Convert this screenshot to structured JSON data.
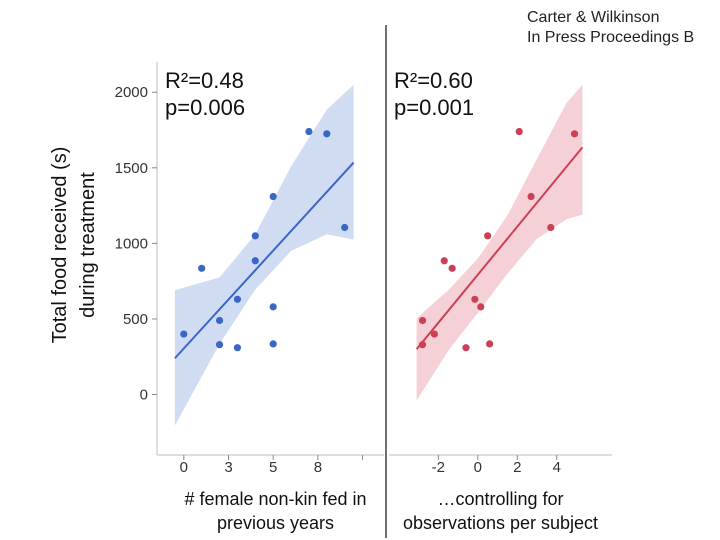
{
  "credit": {
    "line1": "Carter & Wilkinson",
    "line2": "In Press Proceedings B"
  },
  "chart_data": [
    {
      "type": "scatter",
      "title": "",
      "ylabel": "Total food received (s)",
      "ylabel_line2": "during treatment",
      "xlabel": "# female non-kin fed in",
      "xlabel_line2": "previous years",
      "ylim": [
        -400,
        2200
      ],
      "xlim": [
        -1.5,
        11.2
      ],
      "yticks": [
        0,
        500,
        1000,
        1500,
        2000
      ],
      "ytick_labels": [
        "0",
        "500",
        "1000",
        "1500",
        "2000"
      ],
      "xticks": [
        0,
        2.5,
        5,
        7.5,
        10
      ],
      "xtick_labels": [
        "0",
        "3",
        "5",
        "8",
        ""
      ],
      "stats": {
        "r2": "R²=0.48",
        "p": "p=0.006"
      },
      "color": "#3a66c8",
      "band_color": "#c8d6f0",
      "points": [
        {
          "x": 0,
          "y": 400
        },
        {
          "x": 1,
          "y": 835
        },
        {
          "x": 2,
          "y": 490
        },
        {
          "x": 2,
          "y": 330
        },
        {
          "x": 3,
          "y": 630
        },
        {
          "x": 3,
          "y": 310
        },
        {
          "x": 4,
          "y": 1050
        },
        {
          "x": 4,
          "y": 885
        },
        {
          "x": 5,
          "y": 1310
        },
        {
          "x": 5,
          "y": 580
        },
        {
          "x": 5,
          "y": 335
        },
        {
          "x": 7,
          "y": 1740
        },
        {
          "x": 8,
          "y": 1725
        },
        {
          "x": 9,
          "y": 1105
        }
      ],
      "fit": {
        "x0": -0.5,
        "y0": 240,
        "x1": 9.5,
        "y1": 1535
      },
      "band": {
        "x": [
          -0.5,
          2,
          4,
          6,
          8,
          9.5
        ],
        "upper": [
          690,
          775,
          1060,
          1510,
          1885,
          2050
        ],
        "lower": [
          -205,
          335,
          695,
          950,
          1060,
          1025
        ]
      }
    },
    {
      "type": "scatter",
      "title": "",
      "ylabel": "",
      "xlabel": "…controlling for",
      "xlabel_line2": "observations per subject",
      "ylim": [
        -400,
        2200
      ],
      "xlim": [
        -4.5,
        6.8
      ],
      "xticks": [
        -2,
        0,
        2,
        4
      ],
      "xtick_labels": [
        "-2",
        "0",
        "2",
        "4"
      ],
      "stats": {
        "r2": "R²=0.60",
        "p": "p=0.001"
      },
      "color": "#cc4055",
      "band_color": "#f3c9d0",
      "points": [
        {
          "x": -2.8,
          "y": 490
        },
        {
          "x": -2.8,
          "y": 330
        },
        {
          "x": -2.2,
          "y": 400
        },
        {
          "x": -1.7,
          "y": 885
        },
        {
          "x": -1.3,
          "y": 835
        },
        {
          "x": -0.6,
          "y": 310
        },
        {
          "x": -0.15,
          "y": 630
        },
        {
          "x": 0.15,
          "y": 580
        },
        {
          "x": 0.5,
          "y": 1050
        },
        {
          "x": 0.6,
          "y": 335
        },
        {
          "x": 2.1,
          "y": 1740
        },
        {
          "x": 2.7,
          "y": 1310
        },
        {
          "x": 3.7,
          "y": 1105
        },
        {
          "x": 4.9,
          "y": 1725
        }
      ],
      "fit": {
        "x0": -3.1,
        "y0": 300,
        "x1": 5.3,
        "y1": 1635
      },
      "band": {
        "x": [
          -3.1,
          -1.5,
          0,
          1.5,
          3,
          4.5,
          5.3
        ],
        "upper": [
          505,
          690,
          900,
          1185,
          1560,
          1930,
          2050
        ],
        "lower": [
          -40,
          290,
          540,
          800,
          1030,
          1160,
          1190
        ]
      }
    }
  ]
}
